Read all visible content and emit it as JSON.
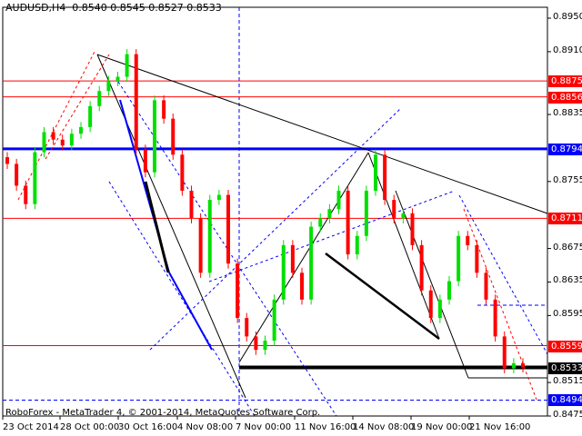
{
  "header": {
    "symbol_line": "AUDUSD,H4  0.8540 0.8545 0.8527 0.8533"
  },
  "footer": {
    "copyright": "RoboForex - MetaTrader 4, © 2001-2014, MetaQuotes Software Corp."
  },
  "colors": {
    "bull": "#00e000",
    "bear": "#ff0000",
    "support_resistance": "#ff0000",
    "key_level": "#0000ff",
    "current": "#000000"
  },
  "chart_data": {
    "type": "candlestick",
    "symbol": "AUDUSD",
    "timeframe": "H4",
    "ylim": [
      0.8465,
      0.897
    ],
    "y_ticks": [
      "0.8950",
      "0.8910",
      "0.8835",
      "0.8755",
      "0.8675",
      "0.8635",
      "0.8595",
      "0.8515",
      "0.8475"
    ],
    "x_ticks": [
      "23 Oct 2014",
      "28 Oct 00:00",
      "30 Oct 16:00",
      "4 Nov 08:00",
      "7 Nov 00:00",
      "11 Nov 16:00",
      "14 Nov 08:00",
      "19 Nov 00:00",
      "21 Nov 16:00"
    ],
    "closes": [
      0.8776,
      0.875,
      0.8728,
      0.879,
      0.8814,
      0.8805,
      0.8798,
      0.8812,
      0.882,
      0.8845,
      0.8863,
      0.8875,
      0.888,
      0.8907,
      0.8793,
      0.8766,
      0.8852,
      0.883,
      0.8787,
      0.8744,
      0.8711,
      0.8646,
      0.8733,
      0.8739,
      0.8657,
      0.8592,
      0.857,
      0.8554,
      0.8565,
      0.8614,
      0.8679,
      0.8646,
      0.8614,
      0.8701,
      0.8711,
      0.8722,
      0.8744,
      0.8668,
      0.869,
      0.8744,
      0.8787,
      0.8733,
      0.8711,
      0.8717,
      0.8679,
      0.8625,
      0.8592,
      0.8614,
      0.8636,
      0.869,
      0.8679,
      0.8646,
      0.8614,
      0.857,
      0.8532,
      0.8538,
      0.8533
    ],
    "levels": [
      {
        "price": 0.8875,
        "label": "0.8875",
        "color": "#ff0000"
      },
      {
        "price": 0.8856,
        "label": "0.8856",
        "color": "#ff0000"
      },
      {
        "price": 0.8794,
        "label": "0.8794",
        "color": "#0000ff"
      },
      {
        "price": 0.8711,
        "label": "0.8711",
        "color": "#ff0000"
      },
      {
        "price": 0.8559,
        "label": "0.8559",
        "color": "#ff0000"
      },
      {
        "price": 0.8533,
        "label": "0.8533",
        "color": "#000000"
      },
      {
        "price": 0.8494,
        "label": "0.8494",
        "color": "#0000ff"
      }
    ]
  }
}
